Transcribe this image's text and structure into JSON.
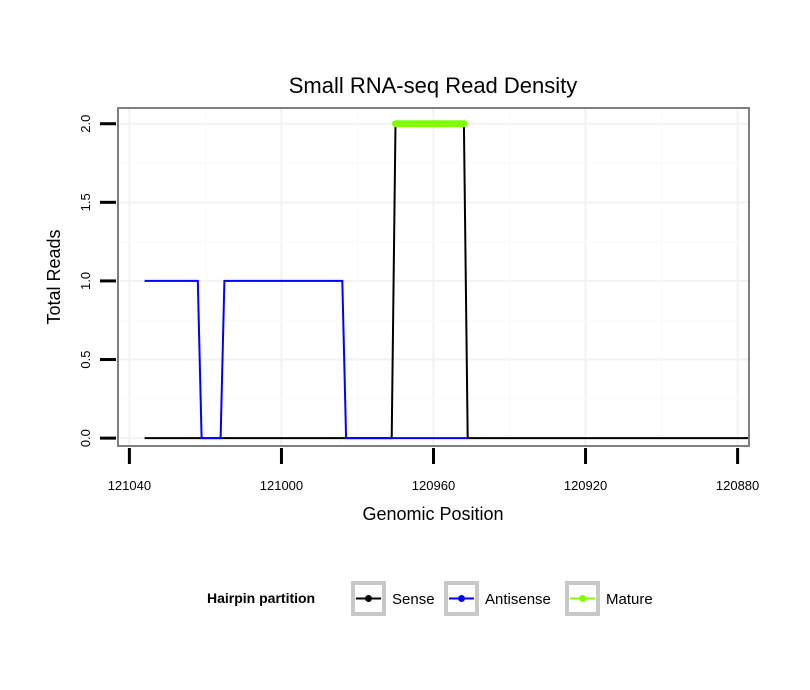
{
  "chart_data": {
    "type": "line",
    "title": "Small RNA-seq Read Density",
    "xlabel": "Genomic Position",
    "ylabel": "Total Reads",
    "xlim": [
      121043,
      120877
    ],
    "ylim": [
      -0.05,
      2.1
    ],
    "x_reversed": true,
    "x_ticks": [
      121040,
      121000,
      120960,
      120920,
      120880
    ],
    "x_tick_labels": [
      "121040",
      "121000",
      "120960",
      "120920",
      "120880"
    ],
    "y_ticks": [
      0,
      0.5,
      1,
      1.5,
      2
    ],
    "y_tick_labels": [
      "0.0",
      "0.5",
      "1.0",
      "1.5",
      "2.0"
    ],
    "grid": true,
    "legend": {
      "title": "Hairpin partition",
      "position": "bottom",
      "entries": [
        "Sense",
        "Antisense",
        "Mature"
      ]
    },
    "series": [
      {
        "name": "Sense",
        "color": "#000000",
        "x": [
          121036,
          120971,
          120970,
          120952,
          120951,
          120877
        ],
        "values": [
          0,
          0,
          2,
          2,
          0,
          0
        ]
      },
      {
        "name": "Antisense",
        "color": "#0000ff",
        "x": [
          121036,
          121022,
          121021,
          121016,
          121015,
          120984,
          120983,
          120971,
          120951
        ],
        "values": [
          1,
          1,
          0,
          0,
          1,
          1,
          0,
          0,
          0
        ]
      },
      {
        "name": "Mature",
        "color": "#7fff00",
        "x": [
          120970,
          120952
        ],
        "values": [
          2,
          2
        ]
      }
    ]
  }
}
